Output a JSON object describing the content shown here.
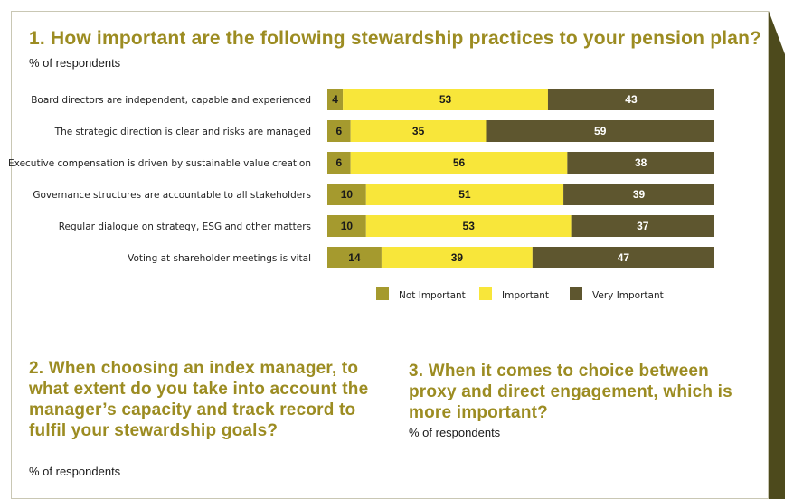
{
  "colors": {
    "title": "#9c8c22",
    "not_important": "#a59a2e",
    "important": "#f8e63a",
    "very_important": "#5e562f"
  },
  "q1": {
    "title": "1. How important are the following stewardship practices to your pension plan?",
    "subtitle": "% of respondents"
  },
  "q2": {
    "title": "2. When choosing an index manager, to what extent do you take into account the manager’s capacity and track record to fulfil your stewardship goals?",
    "subtitle": "% of respondents"
  },
  "q3": {
    "title": "3. When it comes to choice between proxy and direct engagement, which is more important?",
    "subtitle": "% of respondents"
  },
  "chart_data": {
    "type": "bar",
    "orientation": "horizontal",
    "stacked": true,
    "title": "1. How important are the following stewardship practices to your pension plan?",
    "ylabel": "% of respondents",
    "legend_position": "bottom",
    "categories": [
      "Board directors are independent, capable and experienced",
      "The strategic direction is clear and risks are managed",
      "Executive compensation is driven by sustainable value creation",
      "Governance structures are accountable to all stakeholders",
      "Regular dialogue on strategy, ESG and other matters",
      "Voting at shareholder meetings is vital"
    ],
    "series": [
      {
        "name": "Not Important",
        "values": [
          4,
          6,
          6,
          10,
          10,
          14
        ]
      },
      {
        "name": "Important",
        "values": [
          53,
          35,
          56,
          51,
          53,
          39
        ]
      },
      {
        "name": "Very Important",
        "values": [
          43,
          59,
          38,
          39,
          37,
          47
        ]
      }
    ],
    "xlim": [
      0,
      100
    ]
  }
}
